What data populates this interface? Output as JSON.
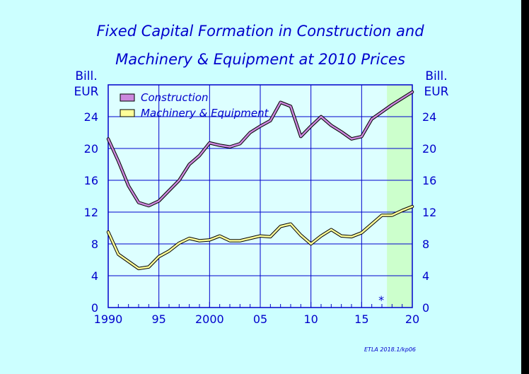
{
  "chart_data": {
    "type": "line",
    "title_line1": "Fixed Capital Formation in Construction and",
    "title_line2": "Machinery & Equipment at 2010 Prices",
    "ylabel_left": [
      "Bill.",
      "EUR"
    ],
    "ylabel_right": [
      "Bill.",
      "EUR"
    ],
    "ylim": [
      0,
      28
    ],
    "yticks": [
      0,
      4,
      8,
      12,
      16,
      20,
      24
    ],
    "xlim": [
      1990,
      2020
    ],
    "xticks": [
      1990,
      1995,
      2000,
      2005,
      2010,
      2015,
      2020
    ],
    "xtick_labels": [
      "1990",
      "95",
      "2000",
      "05",
      "10",
      "15",
      "20"
    ],
    "x": [
      1990,
      1991,
      1992,
      1993,
      1994,
      1995,
      1996,
      1997,
      1998,
      1999,
      2000,
      2001,
      2002,
      2003,
      2004,
      2005,
      2006,
      2007,
      2008,
      2009,
      2010,
      2011,
      2012,
      2013,
      2014,
      2015,
      2016,
      2017,
      2018,
      2019,
      2020
    ],
    "series": [
      {
        "name": "Construction",
        "color": "#cc88dd",
        "values": [
          21.2,
          18.4,
          15.3,
          13.2,
          12.8,
          13.4,
          14.7,
          16.0,
          18.0,
          19.1,
          20.7,
          20.4,
          20.2,
          20.6,
          22.0,
          22.8,
          23.5,
          25.8,
          25.3,
          21.5,
          22.8,
          24.0,
          22.9,
          22.1,
          21.2,
          21.5,
          23.7,
          24.6,
          25.5,
          26.3,
          27.1
        ]
      },
      {
        "name": "Machinery & Equipment",
        "color": "#ffff99",
        "values": [
          9.5,
          6.7,
          5.8,
          4.9,
          5.1,
          6.4,
          7.1,
          8.1,
          8.7,
          8.4,
          8.5,
          9.0,
          8.4,
          8.4,
          8.7,
          9.0,
          8.9,
          10.2,
          10.5,
          9.1,
          8.0,
          9.0,
          9.8,
          9.0,
          8.9,
          9.4,
          10.5,
          11.6,
          11.6,
          12.2,
          12.7
        ]
      }
    ],
    "forecast_start": 2017.5,
    "forecast_marker": "*",
    "legend_position": "top-left",
    "grid": true,
    "source_note": "ETLA 2018.1/kp06"
  }
}
